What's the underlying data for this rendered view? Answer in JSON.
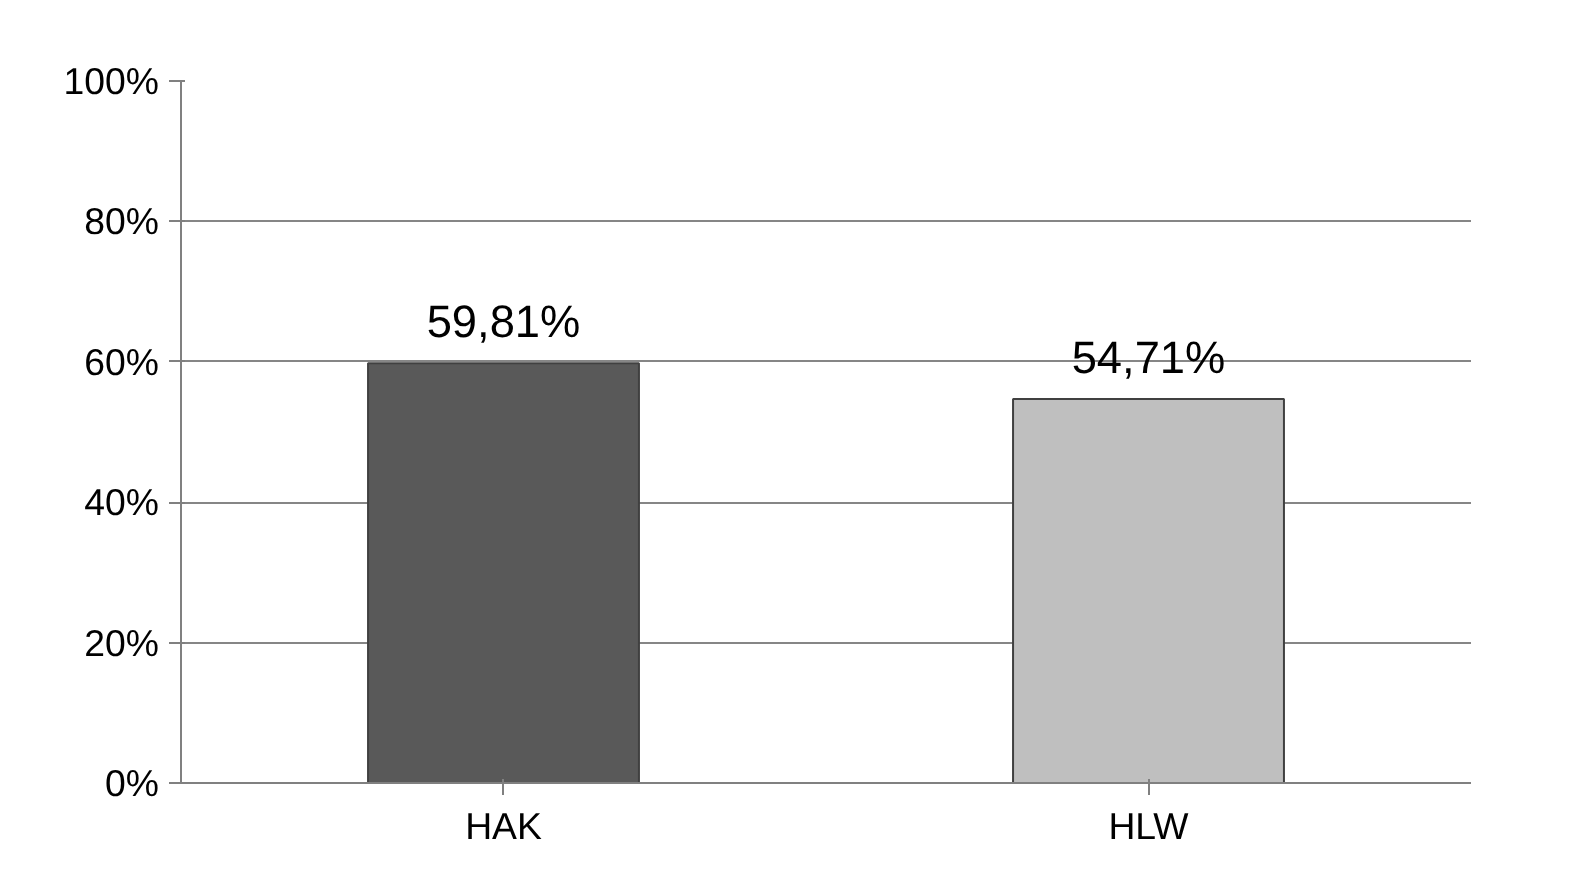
{
  "chart_data": {
    "type": "bar",
    "categories": [
      "HAK",
      "HLW"
    ],
    "values": [
      59.81,
      54.71
    ],
    "colors": [
      "#595959",
      "#bfbfbf"
    ],
    "value_labels": [
      "59,81%",
      "54,71%"
    ],
    "ylim": [
      0,
      100
    ],
    "yticks": [
      {
        "value": 0,
        "label": "0%"
      },
      {
        "value": 20,
        "label": "20%"
      },
      {
        "value": 40,
        "label": "40%"
      },
      {
        "value": 60,
        "label": "60%"
      },
      {
        "value": 80,
        "label": "80%"
      },
      {
        "value": 100,
        "label": "100%"
      }
    ],
    "grid": "y"
  }
}
